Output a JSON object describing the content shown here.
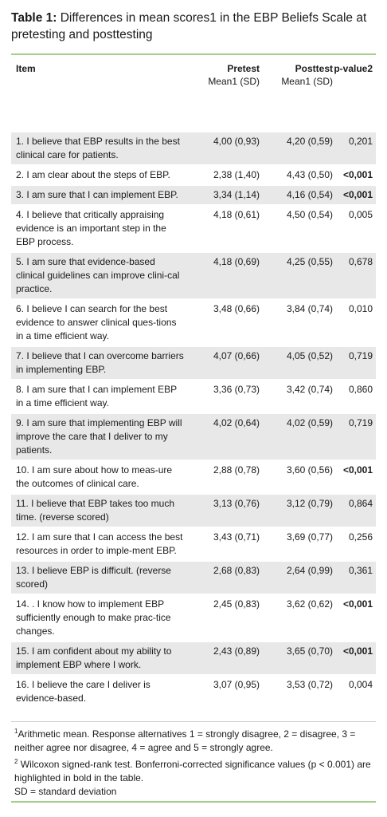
{
  "caption": {
    "label": "Table 1:",
    "text": "Differences in mean scores1 in the EBP Beliefs Scale at pretesting and posttesting"
  },
  "header": {
    "item": "Item",
    "pretest": "Pretest",
    "pretest_sub": "Mean1 (SD)",
    "posttest": "Posttest",
    "posttest_sub": "Mean1 (SD)",
    "pvalue": "p-value2"
  },
  "rows": [
    {
      "item": "1. I believe that EBP results in the best clinical care for patients.",
      "pre": "4,00 (0,93)",
      "post": "4,20 (0,59)",
      "p": "0,201",
      "bold": false
    },
    {
      "item": "2. I am clear about the steps of EBP.",
      "pre": "2,38 (1,40)",
      "post": "4,43 (0,50)",
      "p": "<0,001",
      "bold": true
    },
    {
      "item": "3. I am sure that I can implement EBP.",
      "pre": "3,34 (1,14)",
      "post": "4,16 (0,54)",
      "p": "<0,001",
      "bold": true
    },
    {
      "item": "4. I believe that critically appraising evidence is an important step in the EBP process.",
      "pre": "4,18 (0,61)",
      "post": "4,50 (0,54)",
      "p": "0,005",
      "bold": false
    },
    {
      "item": "5. I am sure that evidence-based clinical guidelines can improve clini-cal practice.",
      "pre": "4,18 (0,69)",
      "post": "4,25 (0,55)",
      "p": "0,678",
      "bold": false
    },
    {
      "item": "6. I believe I can search for the best evidence to answer clinical ques-tions in a time efficient way.",
      "pre": "3,48 (0,66)",
      "post": "3,84 (0,74)",
      "p": "0,010",
      "bold": false
    },
    {
      "item": "7. I believe that I can overcome barriers in implementing EBP.",
      "pre": "4,07 (0,66)",
      "post": "4,05 (0,52)",
      "p": "0,719",
      "bold": false
    },
    {
      "item": "8. I am sure that I can implement EBP in a time efficient way.",
      "pre": "3,36 (0,73)",
      "post": "3,42 (0,74)",
      "p": "0,860",
      "bold": false
    },
    {
      "item": "9. I am sure that implementing EBP will improve the care that I deliver to my patients.",
      "pre": "4,02 (0,64)",
      "post": "4,02 (0,59)",
      "p": "0,719",
      "bold": false
    },
    {
      "item": "10. I am sure about how to meas-ure the outcomes of clinical care.",
      "pre": "2,88 (0,78)",
      "post": "3,60 (0,56)",
      "p": "<0,001",
      "bold": true
    },
    {
      "item": "11. I believe that EBP takes too much time. (reverse scored)",
      "pre": "3,13 (0,76)",
      "post": "3,12 (0,79)",
      "p": "0,864",
      "bold": false
    },
    {
      "item": "12. I am sure that I can access the best resources in order to imple-ment EBP.",
      "pre": "3,43 (0,71)",
      "post": "3,69 (0,77)",
      "p": "0,256",
      "bold": false
    },
    {
      "item": "13. I believe EBP is difficult. (reverse scored)",
      "pre": "2,68 (0,83)",
      "post": "2,64 (0,99)",
      "p": "0,361",
      "bold": false
    },
    {
      "item": "14. . I know how to implement EBP sufficiently enough to make prac-tice changes.",
      "pre": "2,45 (0,83)",
      "post": "3,62 (0,62)",
      "p": "<0,001",
      "bold": true
    },
    {
      "item": "15. I am confident about my ability to implement EBP where I work.",
      "pre": "2,43 (0,89)",
      "post": "3,65 (0,70)",
      "p": "<0,001",
      "bold": true
    },
    {
      "item": "16. I believe the care I deliver is evidence-based.",
      "pre": "3,07 (0,95)",
      "post": "3,53 (0,72)",
      "p": "0,004",
      "bold": false
    }
  ],
  "notes": {
    "n1_sup": "1",
    "n1": "Arithmetic mean. Response alternatives 1 = strongly disagree, 2 = disagree, 3 = neither agree nor disagree, 4 = agree and 5 = strongly agree.",
    "n2_sup": "2",
    "n2": " Wilcoxon signed-rank test. Bonferroni-corrected significance values (p < 0.001) are highlighted in bold in the table.",
    "n3": "SD = standard deviation"
  }
}
